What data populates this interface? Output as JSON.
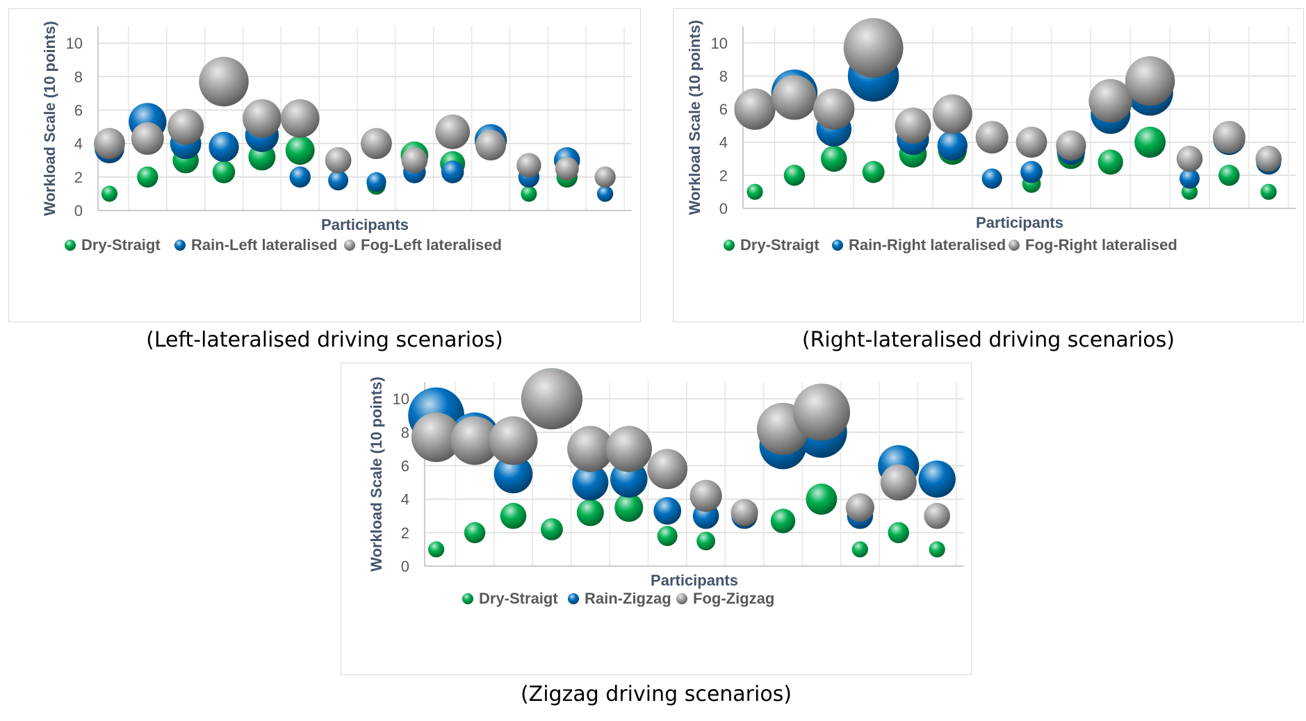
{
  "chart_data": [
    {
      "type": "scatter",
      "xlabel": "Participants",
      "ylabel": "Workload Scale (10 points)",
      "ylim": [
        0,
        10
      ],
      "yticks": [
        "0",
        "2",
        "4",
        "6",
        "8",
        "10"
      ],
      "caption": "(Left-lateralised driving scenarios)",
      "grid": true,
      "legend_position": "bottom",
      "x": [
        1,
        2,
        3,
        4,
        5,
        6,
        7,
        8,
        9,
        10,
        11,
        12,
        13,
        14
      ],
      "series": [
        {
          "name": "Dry-Straigt",
          "color": "#00b050",
          "values": [
            1,
            2,
            3,
            2.3,
            3.2,
            3.6,
            3,
            1.5,
            3.3,
            2.8,
            4.2,
            1,
            2,
            1
          ]
        },
        {
          "name": "Rain-Left lateralised",
          "color": "#0070c0",
          "values": [
            3.7,
            5.3,
            4,
            3.8,
            4.5,
            2,
            1.8,
            1.7,
            2.3,
            2.3,
            4.2,
            2,
            3,
            1
          ]
        },
        {
          "name": "Fog-Left lateralised",
          "color": "#a6a6a6",
          "values": [
            4,
            4.3,
            5,
            7.7,
            5.5,
            5.5,
            3,
            4,
            3,
            4.7,
            3.9,
            2.7,
            2.5,
            2
          ]
        }
      ]
    },
    {
      "type": "scatter",
      "xlabel": "Participants",
      "ylabel": "Workload Scale (10 points)",
      "ylim": [
        0,
        10
      ],
      "yticks": [
        "0",
        "2",
        "4",
        "6",
        "8",
        "10"
      ],
      "caption": "(Right-lateralised driving scenarios)",
      "grid": true,
      "legend_position": "bottom",
      "x": [
        1,
        2,
        3,
        4,
        5,
        6,
        7,
        8,
        9,
        10,
        11,
        12,
        13,
        14
      ],
      "series": [
        {
          "name": "Dry-Straigt",
          "color": "#00b050",
          "values": [
            1,
            2,
            3,
            2.2,
            3.3,
            3.5,
            1.8,
            1.5,
            3.2,
            2.8,
            4,
            1,
            2,
            1
          ]
        },
        {
          "name": "Rain-Right lateralised",
          "color": "#0070c0",
          "values": [
            6,
            7,
            4.8,
            8,
            4.2,
            3.8,
            1.8,
            2.2,
            3.5,
            5.7,
            7,
            1.8,
            4.2,
            2.8
          ]
        },
        {
          "name": "Fog-Right lateralised",
          "color": "#a6a6a6",
          "values": [
            6,
            6.7,
            6,
            9.7,
            5,
            5.7,
            4.3,
            4,
            3.8,
            6.5,
            7.7,
            3,
            4.3,
            3
          ]
        }
      ]
    },
    {
      "type": "scatter",
      "xlabel": "Participants",
      "ylabel": "Workload Scale (10 points)",
      "ylim": [
        0,
        10
      ],
      "yticks": [
        "0",
        "2",
        "4",
        "6",
        "8",
        "10"
      ],
      "caption": "(Zigzag driving scenarios)",
      "grid": true,
      "legend_position": "bottom",
      "x": [
        1,
        2,
        3,
        4,
        5,
        6,
        7,
        8,
        9,
        10,
        11,
        12,
        13,
        14
      ],
      "series": [
        {
          "name": "Dry-Straigt",
          "color": "#00b050",
          "values": [
            1,
            2,
            3,
            2.2,
            3.2,
            3.5,
            1.8,
            1.5,
            3.2,
            2.7,
            4,
            1,
            2,
            1
          ]
        },
        {
          "name": "Rain-Zigzag",
          "color": "#0070c0",
          "values": [
            9,
            7.7,
            5.5,
            10,
            5,
            5.2,
            3.3,
            3,
            3,
            7.2,
            8,
            3,
            6,
            5.2
          ]
        },
        {
          "name": "Fog-Zigzag",
          "color": "#a6a6a6",
          "values": [
            7.7,
            7.5,
            7.5,
            10,
            7,
            7,
            5.8,
            4.2,
            3.2,
            8.2,
            9.2,
            3.5,
            5,
            3
          ]
        }
      ]
    }
  ]
}
